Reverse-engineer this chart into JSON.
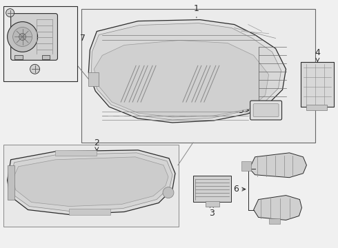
{
  "bg_color": "#f0f0f0",
  "line_color": "#2a2a2a",
  "label_color": "#000000",
  "fig_width": 4.9,
  "fig_height": 3.6,
  "dpi": 100
}
